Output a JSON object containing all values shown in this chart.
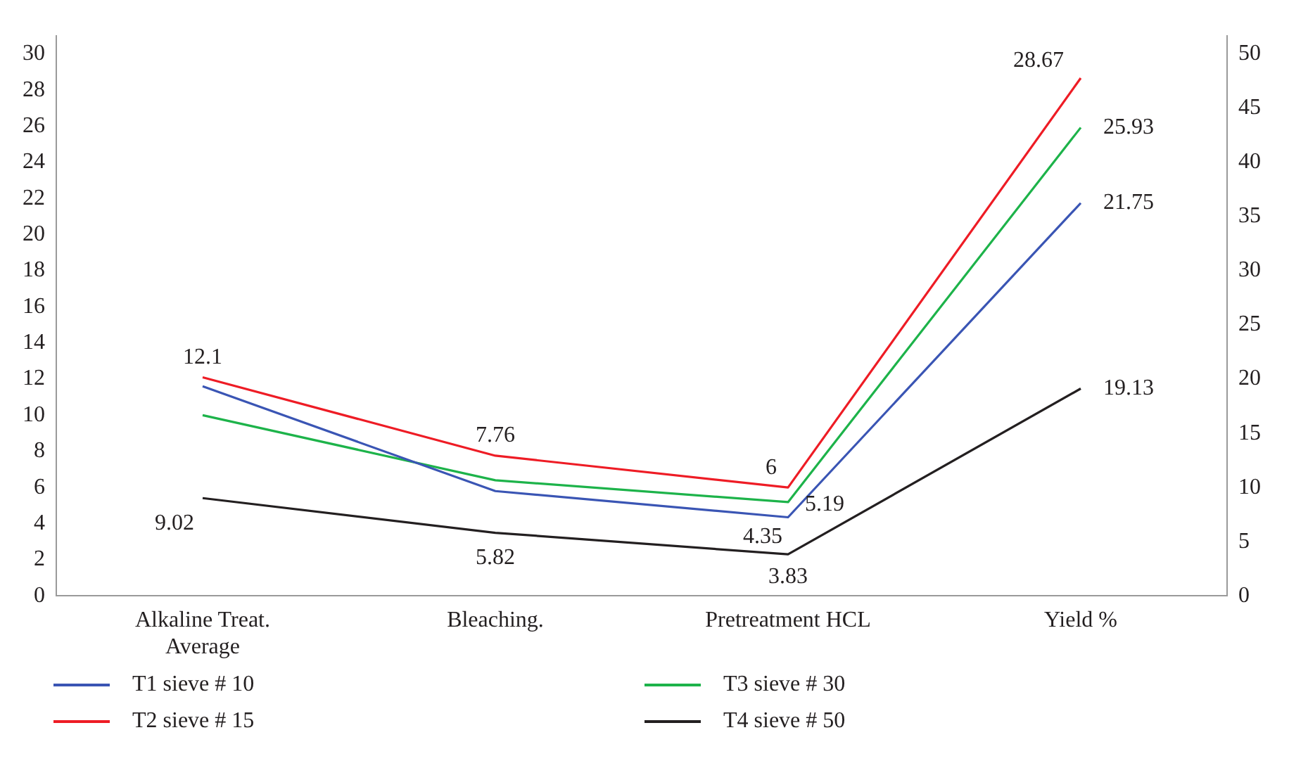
{
  "chart_data": {
    "type": "line",
    "categories": [
      "Alkaline Treat. Average",
      "Bleaching.",
      "Pretreatment HCL",
      "Yield %"
    ],
    "series": [
      {
        "name": "T1 sieve # 10",
        "color": "#3a55b4",
        "values": [
          11.6,
          5.8,
          4.35,
          21.75
        ],
        "value_labels": [
          null,
          null,
          "4.35",
          "21.75"
        ]
      },
      {
        "name": "T2 sieve # 15",
        "color": "#ee1c25",
        "values": [
          12.1,
          7.76,
          6,
          28.67
        ],
        "value_labels": [
          "12.1",
          "7.76",
          "6",
          "28.67"
        ]
      },
      {
        "name": "T3 sieve # 30",
        "color": "#1db34a",
        "values": [
          10,
          6.4,
          5.19,
          25.93
        ],
        "value_labels": [
          null,
          null,
          "5.19",
          "25.93"
        ]
      },
      {
        "name": "T4 sieve # 50",
        "color": "#231f20",
        "axis": "y2",
        "values": [
          9.02,
          5.82,
          3.83,
          19.13
        ],
        "value_labels": [
          "9.02",
          "5.82",
          "3.83",
          "19.13"
        ]
      }
    ],
    "ylim": [
      0,
      31
    ],
    "yticks": [
      0,
      2,
      4,
      6,
      8,
      10,
      12,
      14,
      16,
      18,
      20,
      22,
      24,
      26,
      28,
      30
    ],
    "y2lim": [
      0,
      51.67
    ],
    "y2ticks": [
      0,
      5,
      10,
      15,
      20,
      25,
      30,
      35,
      40,
      45,
      50
    ],
    "grid": false,
    "legend": "bottom",
    "marker": "none",
    "line_style": "solid"
  }
}
